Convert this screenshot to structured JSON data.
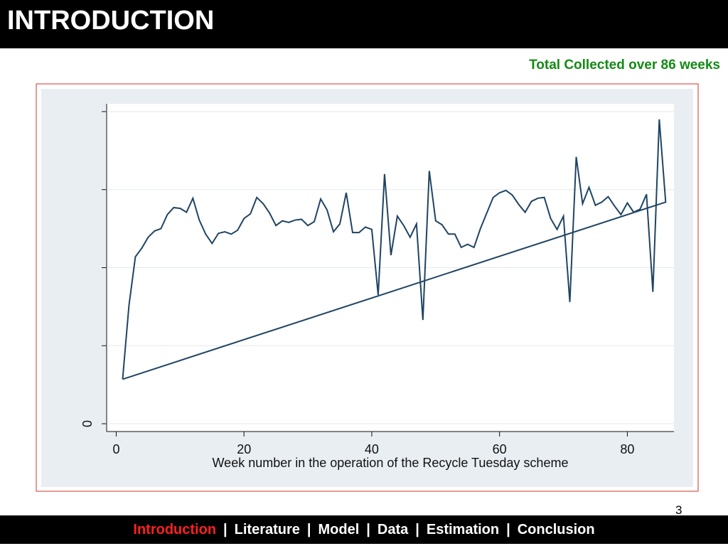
{
  "header": {
    "title": "INTRODUCTION"
  },
  "subtitle": "Total Collected over 86 weeks",
  "chart_data": {
    "type": "line",
    "xlabel": "Week number in the operation of the Recycle Tuesday scheme",
    "xlim": [
      -1.5,
      87.3
    ],
    "xticks": [
      0,
      20,
      40,
      60,
      80
    ],
    "ylim": [
      -0.1,
      4.1
    ],
    "yticks": [
      0
    ],
    "ygrid": [
      0,
      1,
      2,
      3,
      4
    ],
    "grid": true,
    "series": [
      {
        "color": "#1f4464",
        "x": [
          1,
          2,
          3,
          4,
          5,
          6,
          7,
          8,
          9,
          10,
          11,
          12,
          13,
          14,
          15,
          16,
          17,
          18,
          19,
          20,
          21,
          22,
          23,
          24,
          25,
          26,
          27,
          28,
          29,
          30,
          31,
          32,
          33,
          34,
          35,
          36,
          37,
          38,
          39,
          40,
          41,
          42,
          43,
          44,
          45,
          46,
          47,
          48,
          49,
          50,
          51,
          52,
          53,
          54,
          55,
          56,
          57,
          58,
          59,
          60,
          61,
          62,
          63,
          64,
          65,
          66,
          67,
          68,
          69,
          70,
          71,
          72,
          73,
          74,
          75,
          76,
          77,
          78,
          79,
          80,
          81,
          82,
          83,
          84,
          85,
          86,
          1
        ],
        "values": [
          0.57,
          1.52,
          2.14,
          2.25,
          2.39,
          2.47,
          2.5,
          2.68,
          2.77,
          2.76,
          2.71,
          2.89,
          2.61,
          2.43,
          2.31,
          2.44,
          2.46,
          2.43,
          2.48,
          2.63,
          2.69,
          2.9,
          2.82,
          2.7,
          2.54,
          2.6,
          2.58,
          2.61,
          2.62,
          2.54,
          2.59,
          2.88,
          2.74,
          2.46,
          2.56,
          2.96,
          2.45,
          2.45,
          2.52,
          2.49,
          1.65,
          3.2,
          2.16,
          2.66,
          2.54,
          2.39,
          2.56,
          1.33,
          3.24,
          2.6,
          2.55,
          2.43,
          2.43,
          2.26,
          2.3,
          2.26,
          2.5,
          2.7,
          2.9,
          2.96,
          2.99,
          2.93,
          2.81,
          2.71,
          2.85,
          2.89,
          2.9,
          2.63,
          2.49,
          2.66,
          1.56,
          3.42,
          2.82,
          3.03,
          2.8,
          2.84,
          2.91,
          2.79,
          2.68,
          2.83,
          2.71,
          2.75,
          2.94,
          1.69,
          3.9,
          2.84,
          0.57
        ]
      }
    ]
  },
  "page_number": "3",
  "nav": {
    "separator": "|",
    "items": [
      "Introduction",
      "Literature",
      "Model",
      "Data",
      "Estimation",
      "Conclusion"
    ]
  }
}
